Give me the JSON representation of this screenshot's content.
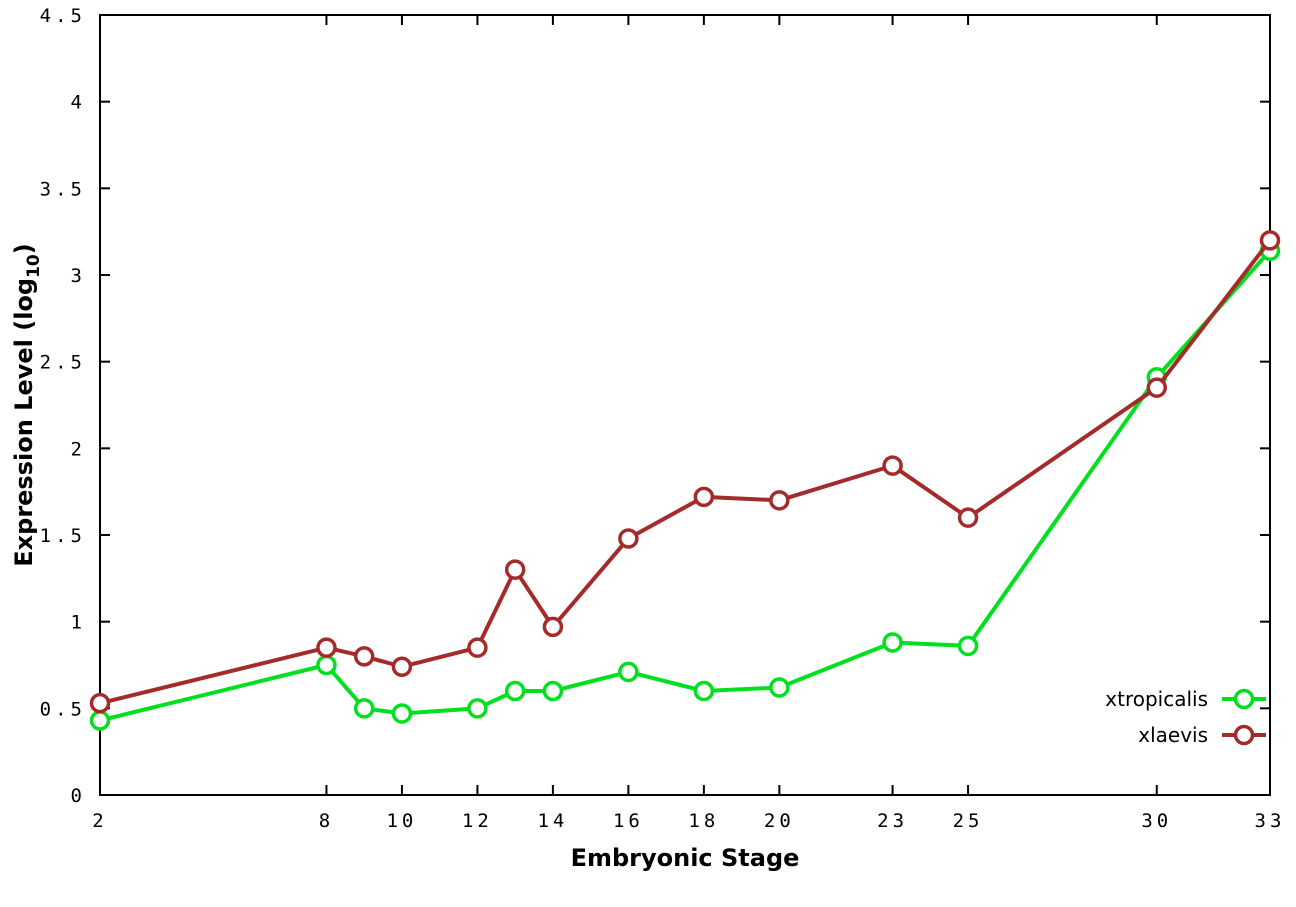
{
  "chart_data": {
    "type": "line",
    "title": "",
    "xlabel": "Embryonic Stage",
    "ylabel": "Expression Level (log10)",
    "ylabel_parts": {
      "pre": "Expression Level (log",
      "sub": "10",
      "post": ")"
    },
    "xlim": [
      2,
      33
    ],
    "ylim": [
      0,
      4.5
    ],
    "xticks": [
      2,
      8,
      10,
      12,
      14,
      16,
      18,
      20,
      23,
      25,
      30,
      33
    ],
    "yticks": [
      0,
      0.5,
      1,
      1.5,
      2,
      2.5,
      3,
      3.5,
      4,
      4.5
    ],
    "grid": false,
    "legend_position": "bottom-right-inside",
    "x": [
      2,
      8,
      9,
      10,
      12,
      13,
      14,
      16,
      18,
      20,
      23,
      25,
      30,
      33
    ],
    "series": [
      {
        "name": "xtropicalis",
        "color": "#00e01e",
        "marker": "open-circle",
        "values": [
          0.43,
          0.75,
          0.5,
          0.47,
          0.5,
          0.6,
          0.6,
          0.71,
          0.6,
          0.62,
          0.88,
          0.86,
          2.41,
          3.14
        ]
      },
      {
        "name": "xlaevis",
        "color": "#a52a2a",
        "marker": "open-circle",
        "values": [
          0.53,
          0.85,
          0.8,
          0.74,
          0.85,
          1.3,
          0.97,
          1.48,
          1.72,
          1.7,
          1.9,
          1.6,
          2.35,
          3.2
        ]
      }
    ],
    "colors": {
      "axis": "#000000",
      "background": "#ffffff",
      "text": "#000000"
    }
  }
}
